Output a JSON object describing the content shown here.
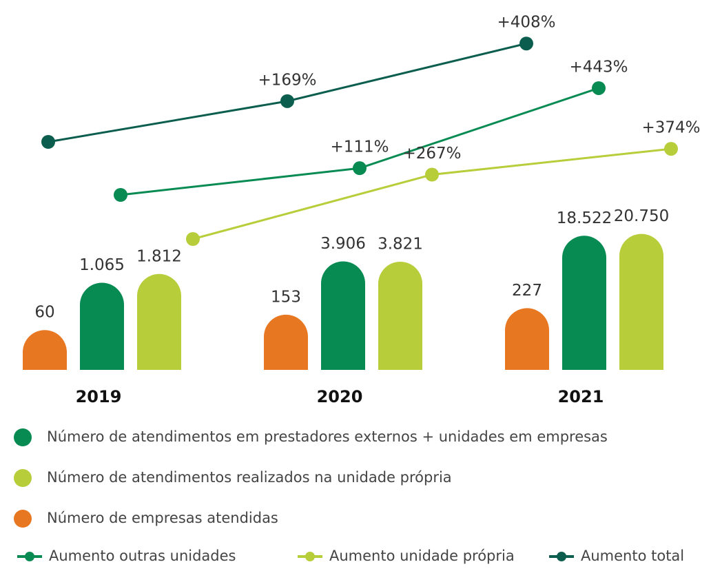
{
  "chart_data": [
    {
      "type": "bar",
      "categories": [
        "2019",
        "2020",
        "2021"
      ],
      "series": [
        {
          "name": "Número de empresas atendidas",
          "color": "#e87722",
          "values": [
            60,
            153,
            227
          ],
          "value_labels": [
            "60",
            "153",
            "227"
          ]
        },
        {
          "name": "Número de atendimentos em prestadores externos + unidades em empresas",
          "color": "#078b53",
          "values": [
            1065,
            3906,
            18522
          ],
          "value_labels": [
            "1.065",
            "3.906",
            "18.522"
          ]
        },
        {
          "name": "Número de atendimentos realizados na unidade própria",
          "color": "#b8cd3a",
          "values": [
            1812,
            3821,
            20750
          ],
          "value_labels": [
            "1.812",
            "3.821",
            "20.750"
          ]
        }
      ]
    },
    {
      "type": "line",
      "series": [
        {
          "name": "Aumento total",
          "color": "#0b5e4e",
          "values": [
            0,
            169,
            408
          ],
          "value_labels": [
            null,
            "+169%",
            "+408%"
          ]
        },
        {
          "name": "Aumento outras unidades",
          "color": "#078b53",
          "values": [
            0,
            111,
            443
          ],
          "value_labels": [
            null,
            "+111%",
            "+443%"
          ]
        },
        {
          "name": "Aumento unidade própria",
          "color": "#b8cd3a",
          "values": [
            0,
            267,
            374
          ],
          "value_labels": [
            null,
            "+267%",
            "+374%"
          ]
        }
      ]
    }
  ]
}
